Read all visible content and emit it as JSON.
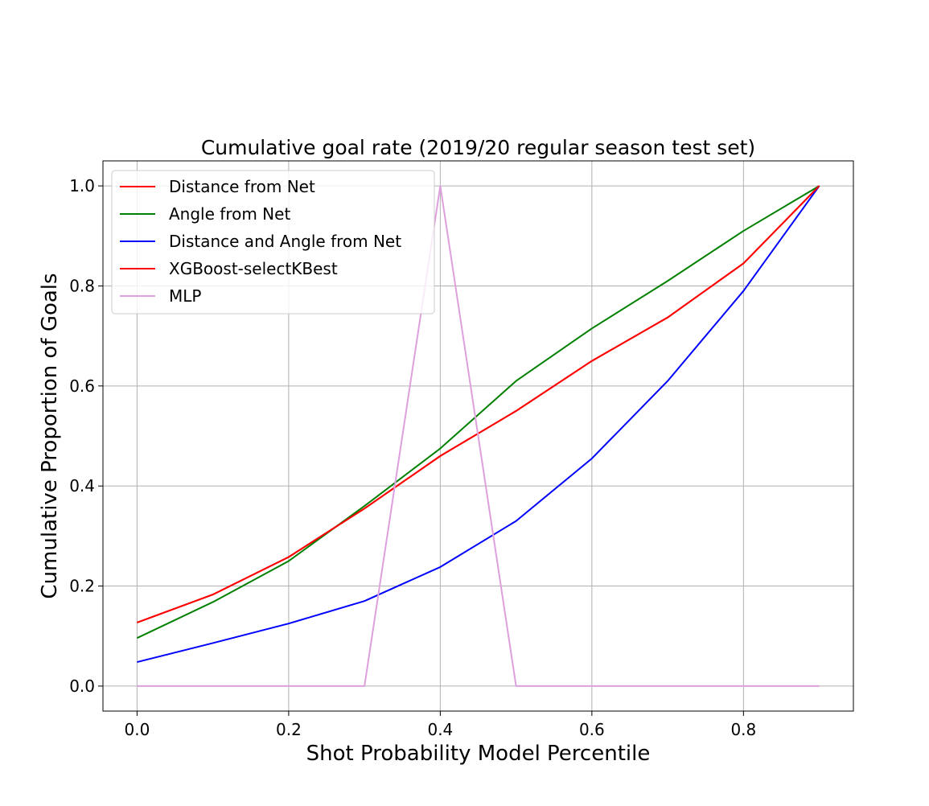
{
  "chart_data": {
    "type": "line",
    "title": "Cumulative goal rate (2019/20 regular season test set)",
    "xlabel": "Shot Probability Model Percentile",
    "ylabel": "Cumulative Proportion of Goals",
    "xlim": [
      -0.045,
      0.945
    ],
    "ylim": [
      -0.05,
      1.05
    ],
    "xticks": [
      0.0,
      0.2,
      0.4,
      0.6,
      0.8
    ],
    "yticks": [
      0.0,
      0.2,
      0.4,
      0.6,
      0.8,
      1.0
    ],
    "xtick_labels": [
      "0.0",
      "0.2",
      "0.4",
      "0.6",
      "0.8"
    ],
    "ytick_labels": [
      "0.0",
      "0.2",
      "0.4",
      "0.6",
      "0.8",
      "1.0"
    ],
    "grid": true,
    "legend_position": "top-left",
    "x": [
      0.0,
      0.1,
      0.2,
      0.3,
      0.4,
      0.5,
      0.6,
      0.7,
      0.8,
      0.9
    ],
    "series": [
      {
        "name": "Distance from Net",
        "color": "#ff0000",
        "values": [
          0.127,
          0.183,
          0.258,
          0.355,
          0.46,
          0.55,
          0.65,
          0.737,
          0.845,
          1.0
        ]
      },
      {
        "name": "Angle from Net",
        "color": "#008000",
        "values": [
          0.096,
          0.168,
          0.25,
          0.36,
          0.475,
          0.61,
          0.715,
          0.81,
          0.91,
          1.0
        ]
      },
      {
        "name": "Distance and Angle from Net",
        "color": "#0000ff",
        "values": [
          0.048,
          0.086,
          0.125,
          0.17,
          0.238,
          0.33,
          0.455,
          0.61,
          0.79,
          1.0
        ]
      },
      {
        "name": "XGBoost-selectKBest",
        "color": "#ff0000",
        "values": [
          0.127,
          0.183,
          0.258,
          0.355,
          0.46,
          0.55,
          0.65,
          0.737,
          0.845,
          1.0
        ]
      },
      {
        "name": "MLP",
        "color": "#dda0dd",
        "values": [
          0.0,
          0.0,
          0.0,
          0.0,
          1.0,
          0.0,
          0.0,
          0.0,
          0.0,
          0.0
        ]
      }
    ]
  }
}
